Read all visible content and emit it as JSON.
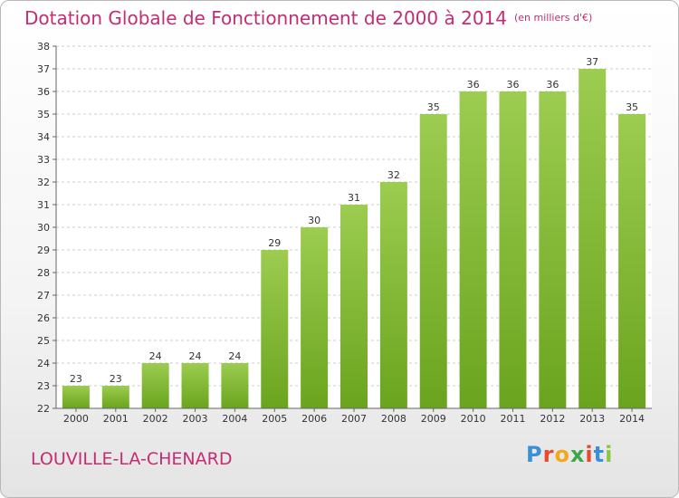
{
  "header": {
    "title": "Dotation Globale de Fonctionnement de 2000 à 2014",
    "unit": "(en milliers d'€)"
  },
  "footer": {
    "commune": "LOUVILLE-LA-CHENARD",
    "logo": {
      "letters": [
        "P",
        "r",
        "o",
        "x",
        "i",
        "t",
        "i"
      ],
      "colors": [
        "#3a8fd6",
        "#e84a2f",
        "#f2a81d",
        "#3aa84a",
        "#e84a2f",
        "#3a8fd6",
        "#8cc63f"
      ]
    }
  },
  "colors": {
    "title": "#c42c73",
    "bar_top": "#9ccc50",
    "bar_bottom": "#6aa41e",
    "grid": "#cccccc",
    "axis": "#666666"
  },
  "chart_data": {
    "type": "bar",
    "categories": [
      "2000",
      "2001",
      "2002",
      "2003",
      "2004",
      "2005",
      "2006",
      "2007",
      "2008",
      "2009",
      "2010",
      "2011",
      "2012",
      "2013",
      "2014"
    ],
    "values": [
      23,
      23,
      24,
      24,
      24,
      29,
      30,
      31,
      32,
      35,
      36,
      36,
      36,
      37,
      35
    ],
    "yticks": [
      22,
      23,
      24,
      25,
      26,
      27,
      28,
      29,
      30,
      31,
      32,
      33,
      34,
      35,
      36,
      37,
      38
    ],
    "ylim": [
      22,
      38
    ],
    "grid": true,
    "data_labels": true
  }
}
